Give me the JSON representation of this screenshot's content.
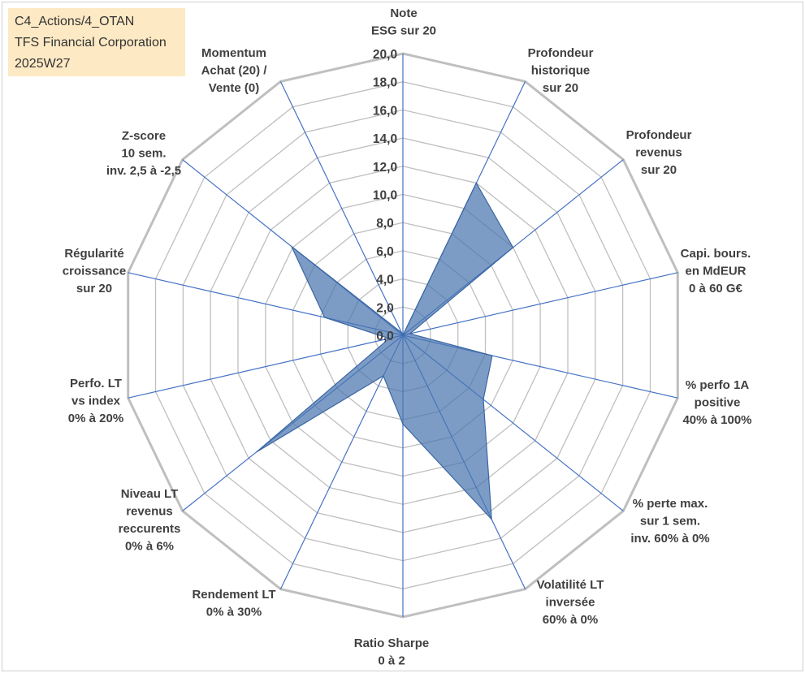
{
  "header": {
    "line1": "C4_Actions/4_OTAN",
    "line2": "TFS Financial Corporation",
    "line3": "2025W27"
  },
  "colors": {
    "grid": "#bfbfbf",
    "spoke": "#4472c4",
    "fill": "#4a76b0",
    "label": "#404040",
    "title_bg": "#fde9c4"
  },
  "chart_data": {
    "type": "radar",
    "grid": true,
    "rmax": 20,
    "ticks": [
      "0,0",
      "2,0",
      "4,0",
      "6,0",
      "8,0",
      "10,0",
      "12,0",
      "14,0",
      "16,0",
      "18,0",
      "20,0"
    ],
    "axes": [
      {
        "label": [
          "Note",
          "ESG sur 20"
        ],
        "value": 0
      },
      {
        "label": [
          "Profondeur",
          "historique",
          "sur 20"
        ],
        "value": 12
      },
      {
        "label": [
          "Profondeur",
          "revenus",
          "sur 20"
        ],
        "value": 10
      },
      {
        "label": [
          "Capi. bours.",
          "en MdEUR",
          "0 à 60 G€"
        ],
        "value": 0.5
      },
      {
        "label": [
          "% perfo 1A",
          "positive",
          "40% à 100%"
        ],
        "value": 6.5
      },
      {
        "label": [
          "% perte max.",
          "sur 1 sem.",
          "inv. 60% à 0%"
        ],
        "value": 7.3
      },
      {
        "label": [
          "Volatilité LT",
          "inversée",
          "60% à 0%"
        ],
        "value": 14.5
      },
      {
        "label": [
          "Ratio Sharpe",
          "0 à 2"
        ],
        "value": 6.3
      },
      {
        "label": [
          "Rendement LT",
          "0% à 30%"
        ],
        "value": 3.2
      },
      {
        "label": [
          "Niveau LT",
          "revenus",
          "reccurents",
          "0% à 6%"
        ],
        "value": 13.3
      },
      {
        "label": [
          "Perfo. LT",
          "vs index",
          "0% à 20%"
        ],
        "value": 1.0
      },
      {
        "label": [
          "Régularité",
          "croissance",
          "sur 20"
        ],
        "value": 5.7
      },
      {
        "label": [
          "Z-score",
          "10 sem.",
          "inv. 2,5 à -2,5"
        ],
        "value": 10.1
      },
      {
        "label": [
          "Momentum",
          "Achat (20) /",
          "Vente (0)"
        ],
        "value": 0.2
      }
    ]
  }
}
